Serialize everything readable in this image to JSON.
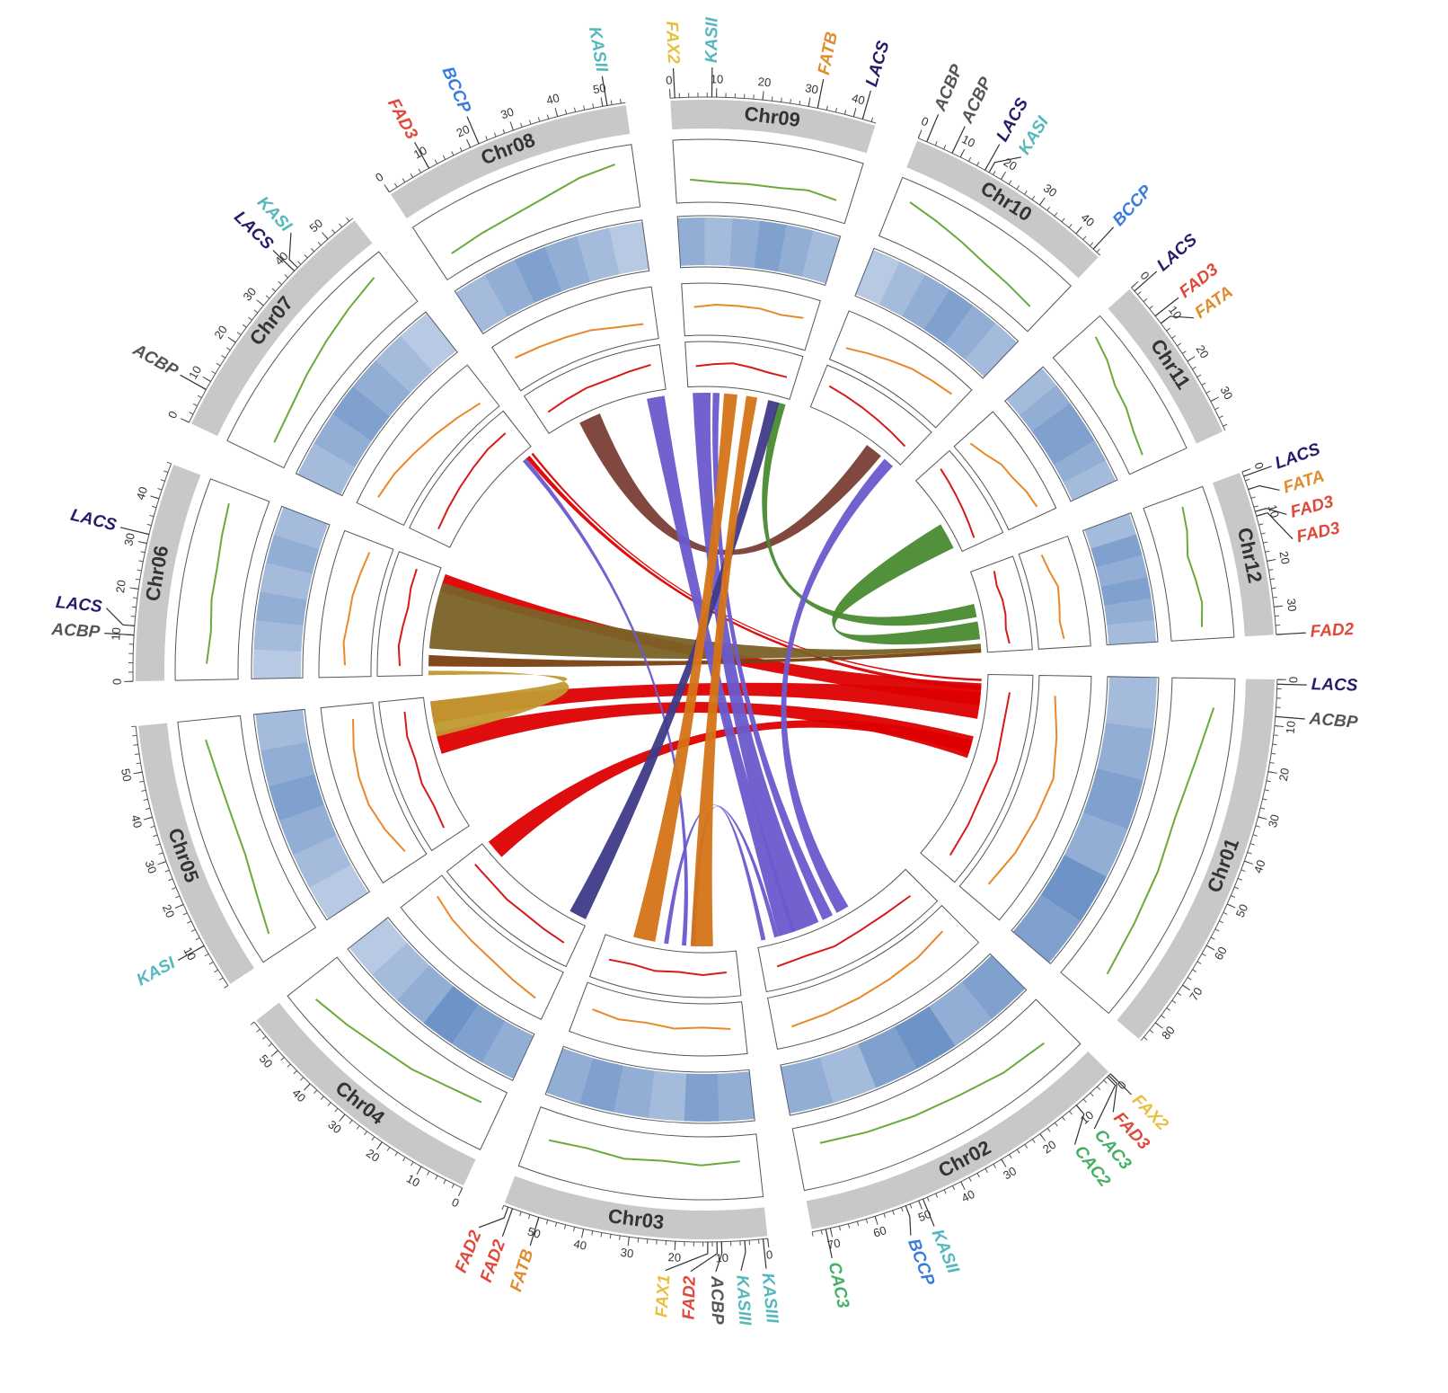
{
  "chart_data": {
    "type": "circos",
    "chromosomes": [
      {
        "name": "Chr01",
        "length": 85,
        "ticks": [
          0,
          10,
          20,
          30,
          40,
          50,
          60,
          70,
          80
        ]
      },
      {
        "name": "Chr02",
        "length": 74,
        "ticks": [
          0,
          10,
          20,
          30,
          40,
          50,
          60,
          70
        ]
      },
      {
        "name": "Chr03",
        "length": 58,
        "ticks": [
          0,
          10,
          20,
          30,
          40,
          50
        ]
      },
      {
        "name": "Chr04",
        "length": 58,
        "ticks": [
          0,
          10,
          20,
          30,
          40,
          50
        ]
      },
      {
        "name": "Chr05",
        "length": 60,
        "ticks": [
          10,
          20,
          30,
          40,
          50
        ]
      },
      {
        "name": "Chr06",
        "length": 48,
        "ticks": [
          0,
          10,
          20,
          30,
          40
        ]
      },
      {
        "name": "Chr07",
        "length": 57,
        "ticks": [
          0,
          10,
          20,
          30,
          40,
          50
        ]
      },
      {
        "name": "Chr08",
        "length": 55,
        "ticks": [
          0,
          10,
          20,
          30,
          40,
          50
        ]
      },
      {
        "name": "Chr09",
        "length": 45,
        "ticks": [
          0,
          10,
          20,
          30,
          40
        ]
      },
      {
        "name": "Chr10",
        "length": 47,
        "ticks": [
          0,
          10,
          20,
          30,
          40
        ]
      },
      {
        "name": "Chr11",
        "length": 37,
        "ticks": [
          0,
          10,
          20,
          30
        ]
      },
      {
        "name": "Chr12",
        "length": 36,
        "ticks": [
          0,
          10,
          20,
          30
        ]
      }
    ],
    "minor_tick_step": 2,
    "gene_colors": {
      "LACS": "#2b1a6b",
      "ACBP": "#555555",
      "KASI": "#55b8bd",
      "KASII": "#55b8bd",
      "KASIII": "#55b8bd",
      "BCCP": "#3b7be0",
      "FAD3": "#e0483a",
      "FAD2": "#e0483a",
      "FATA": "#e08c2c",
      "FATB": "#e08c2c",
      "FAX2": "#e8c040",
      "FAX1": "#e8c040",
      "CAC2": "#45b064",
      "CAC3": "#45b064"
    },
    "genes": [
      {
        "chr": "Chr01",
        "name": "LACS",
        "pos": 1
      },
      {
        "chr": "Chr01",
        "name": "ACBP",
        "pos": 8
      },
      {
        "chr": "Chr02",
        "name": "FAX2",
        "pos": 0
      },
      {
        "chr": "Chr02",
        "name": "FAD3",
        "pos": 0.5
      },
      {
        "chr": "Chr02",
        "name": "CAC3",
        "pos": 1
      },
      {
        "chr": "Chr02",
        "name": "CAC2",
        "pos": 10
      },
      {
        "chr": "Chr02",
        "name": "KASII",
        "pos": 49
      },
      {
        "chr": "Chr02",
        "name": "BCCP",
        "pos": 53
      },
      {
        "chr": "Chr02",
        "name": "CAC3",
        "pos": 71
      },
      {
        "chr": "Chr03",
        "name": "KASIII",
        "pos": 1
      },
      {
        "chr": "Chr03",
        "name": "KASIII",
        "pos": 5
      },
      {
        "chr": "Chr03",
        "name": "ACBP",
        "pos": 10
      },
      {
        "chr": "Chr03",
        "name": "FAD2",
        "pos": 11
      },
      {
        "chr": "Chr03",
        "name": "FAX1",
        "pos": 13
      },
      {
        "chr": "Chr03",
        "name": "FATB",
        "pos": 50
      },
      {
        "chr": "Chr03",
        "name": "FAD2",
        "pos": 56
      },
      {
        "chr": "Chr03",
        "name": "FAD2",
        "pos": 57
      },
      {
        "chr": "Chr05",
        "name": "KASI",
        "pos": 10
      },
      {
        "chr": "Chr06",
        "name": "ACBP",
        "pos": 10
      },
      {
        "chr": "Chr06",
        "name": "LACS",
        "pos": 12
      },
      {
        "chr": "Chr06",
        "name": "LACS",
        "pos": 32
      },
      {
        "chr": "Chr07",
        "name": "ACBP",
        "pos": 8
      },
      {
        "chr": "Chr07",
        "name": "LACS",
        "pos": 40
      },
      {
        "chr": "Chr07",
        "name": "KASI",
        "pos": 41
      },
      {
        "chr": "Chr08",
        "name": "FAD3",
        "pos": 10
      },
      {
        "chr": "Chr08",
        "name": "BCCP",
        "pos": 22
      },
      {
        "chr": "Chr08",
        "name": "KASII",
        "pos": 51
      },
      {
        "chr": "Chr09",
        "name": "FAX2",
        "pos": 1
      },
      {
        "chr": "Chr09",
        "name": "KASII",
        "pos": 9
      },
      {
        "chr": "Chr09",
        "name": "FATB",
        "pos": 32
      },
      {
        "chr": "Chr09",
        "name": "LACS",
        "pos": 42
      },
      {
        "chr": "Chr10",
        "name": "ACBP",
        "pos": 2
      },
      {
        "chr": "Chr10",
        "name": "ACBP",
        "pos": 8
      },
      {
        "chr": "Chr10",
        "name": "LACS",
        "pos": 16
      },
      {
        "chr": "Chr10",
        "name": "KASI",
        "pos": 17
      },
      {
        "chr": "Chr10",
        "name": "BCCP",
        "pos": 45
      },
      {
        "chr": "Chr11",
        "name": "LACS",
        "pos": 1
      },
      {
        "chr": "Chr11",
        "name": "FAD3",
        "pos": 8
      },
      {
        "chr": "Chr11",
        "name": "FATA",
        "pos": 10
      },
      {
        "chr": "Chr12",
        "name": "LACS",
        "pos": 1
      },
      {
        "chr": "Chr12",
        "name": "FATA",
        "pos": 4
      },
      {
        "chr": "Chr12",
        "name": "FAD3",
        "pos": 9
      },
      {
        "chr": "Chr12",
        "name": "FAD3",
        "pos": 10
      },
      {
        "chr": "Chr12",
        "name": "FAD2",
        "pos": 36
      }
    ],
    "tracks": [
      {
        "color": "#6aaa3a",
        "style": "line",
        "ylim": [
          0,
          1
        ],
        "data": [
          [
            0.7,
            0.5,
            0.4,
            0.45,
            0.5,
            0.6
          ],
          [
            0.6,
            0.55,
            0.45,
            0.4,
            0.35,
            0.3
          ],
          [
            0.4,
            0.45,
            0.4,
            0.45,
            0.4,
            0.45
          ],
          [
            0.3,
            0.35,
            0.45,
            0.5,
            0.6,
            0.7
          ],
          [
            0.7,
            0.55,
            0.45,
            0.45,
            0.5,
            0.6
          ],
          [
            0.5,
            0.45,
            0.5,
            0.5,
            0.55,
            0.6
          ],
          [
            0.3,
            0.35,
            0.45,
            0.55,
            0.65,
            0.75
          ],
          [
            0.3,
            0.35,
            0.4,
            0.5,
            0.65,
            0.75
          ],
          [
            0.35,
            0.3,
            0.3,
            0.3,
            0.35,
            0.3
          ],
          [
            0.7,
            0.6,
            0.5,
            0.4,
            0.35,
            0.3
          ],
          [
            0.75,
            0.65,
            0.5,
            0.45,
            0.35,
            0.3
          ],
          [
            0.6,
            0.55,
            0.45,
            0.5,
            0.55,
            0.5
          ]
        ]
      },
      {
        "color": "#4a78b8",
        "style": "heat",
        "ylim": [
          0,
          1
        ],
        "data": [
          [
            0.5,
            0.6,
            0.7,
            0.6,
            0.8,
            0.7
          ],
          [
            0.7,
            0.6,
            0.8,
            0.7,
            0.5,
            0.6
          ],
          [
            0.6,
            0.7,
            0.5,
            0.6,
            0.7,
            0.6
          ],
          [
            0.6,
            0.7,
            0.8,
            0.6,
            0.5,
            0.4
          ],
          [
            0.4,
            0.5,
            0.6,
            0.7,
            0.6,
            0.5
          ],
          [
            0.4,
            0.5,
            0.6,
            0.5,
            0.6,
            0.5
          ],
          [
            0.5,
            0.6,
            0.7,
            0.6,
            0.5,
            0.4
          ],
          [
            0.5,
            0.6,
            0.7,
            0.6,
            0.5,
            0.4
          ],
          [
            0.6,
            0.5,
            0.6,
            0.7,
            0.6,
            0.5
          ],
          [
            0.4,
            0.5,
            0.6,
            0.7,
            0.6,
            0.5
          ],
          [
            0.5,
            0.6,
            0.7,
            0.7,
            0.6,
            0.5
          ],
          [
            0.5,
            0.7,
            0.6,
            0.7,
            0.6,
            0.5
          ]
        ]
      },
      {
        "color": "#e8882a",
        "style": "line",
        "ylim": [
          0,
          1
        ],
        "data": [
          [
            0.3,
            0.45,
            0.6,
            0.55,
            0.5,
            0.4
          ],
          [
            0.35,
            0.45,
            0.5,
            0.55,
            0.6,
            0.65
          ],
          [
            0.5,
            0.45,
            0.5,
            0.45,
            0.5,
            0.45
          ],
          [
            0.7,
            0.6,
            0.5,
            0.45,
            0.4,
            0.3
          ],
          [
            0.3,
            0.45,
            0.55,
            0.55,
            0.5,
            0.4
          ],
          [
            0.5,
            0.55,
            0.5,
            0.5,
            0.45,
            0.4
          ],
          [
            0.7,
            0.65,
            0.55,
            0.45,
            0.35,
            0.25
          ],
          [
            0.6,
            0.55,
            0.5,
            0.45,
            0.35,
            0.3
          ],
          [
            0.55,
            0.6,
            0.6,
            0.6,
            0.55,
            0.6
          ],
          [
            0.3,
            0.4,
            0.5,
            0.6,
            0.65,
            0.7
          ],
          [
            0.25,
            0.35,
            0.5,
            0.55,
            0.65,
            0.7
          ],
          [
            0.4,
            0.45,
            0.55,
            0.5,
            0.45,
            0.5
          ]
        ]
      },
      {
        "color": "#d61a1a",
        "style": "line",
        "ylim": [
          0,
          1
        ],
        "data": [
          [
            0.5,
            0.45,
            0.5,
            0.45,
            0.5,
            0.55
          ],
          [
            0.5,
            0.45,
            0.45,
            0.5,
            0.45,
            0.5
          ],
          [
            0.45,
            0.5,
            0.45,
            0.5,
            0.45,
            0.5
          ],
          [
            0.55,
            0.5,
            0.45,
            0.45,
            0.4,
            0.4
          ],
          [
            0.5,
            0.45,
            0.5,
            0.45,
            0.5,
            0.45
          ],
          [
            0.5,
            0.55,
            0.5,
            0.45,
            0.5,
            0.5
          ],
          [
            0.4,
            0.45,
            0.5,
            0.55,
            0.6,
            0.6
          ],
          [
            0.4,
            0.45,
            0.5,
            0.5,
            0.55,
            0.6
          ],
          [
            0.45,
            0.5,
            0.55,
            0.5,
            0.45,
            0.45
          ],
          [
            0.6,
            0.55,
            0.5,
            0.45,
            0.4,
            0.35
          ],
          [
            0.6,
            0.55,
            0.5,
            0.45,
            0.4,
            0.35
          ],
          [
            0.5,
            0.45,
            0.5,
            0.5,
            0.45,
            0.5
          ]
        ]
      }
    ],
    "links": [
      {
        "chr1": "Chr06",
        "start1": 38,
        "end1": 46,
        "chr2": "Chr01",
        "start2": 4,
        "end2": 14,
        "color": "#dd0000"
      },
      {
        "chr1": "Chr05",
        "start1": 48,
        "end1": 58,
        "chr2": "Chr01",
        "start2": 8,
        "end2": 20,
        "color": "#dd0000"
      },
      {
        "chr1": "Chr05",
        "start1": 34,
        "end1": 44,
        "chr2": "Chr01",
        "start2": 28,
        "end2": 38,
        "color": "#dd0000"
      },
      {
        "chr1": "Chr04",
        "start1": 48,
        "end1": 57,
        "chr2": "Chr01",
        "start2": 30,
        "end2": 36,
        "color": "#dd0000"
      },
      {
        "chr1": "Chr07",
        "start1": 52,
        "end1": 54,
        "chr2": "Chr01",
        "start2": 5,
        "end2": 7,
        "color": "#dd0000"
      },
      {
        "chr1": "Chr07",
        "start1": 55,
        "end1": 56,
        "chr2": "Chr01",
        "start2": 2,
        "end2": 3,
        "color": "#dd0000"
      },
      {
        "chr1": "Chr08",
        "start1": 14,
        "end1": 24,
        "chr2": "Chr10",
        "start2": 30,
        "end2": 38,
        "color": "#7a3e35"
      },
      {
        "chr1": "Chr06",
        "start1": 12,
        "end1": 42,
        "chr2": "Chr12",
        "start2": 32,
        "end2": 34,
        "color": "#7a6226"
      },
      {
        "chr1": "Chr06",
        "start1": 4,
        "end1": 9,
        "chr2": "Chr12",
        "start2": 34,
        "end2": 36,
        "color": "#7a4010"
      },
      {
        "chr1": "Chr05",
        "start1": 42,
        "end1": 58,
        "chr2": "Chr06",
        "start2": 0,
        "end2": 2,
        "color": "#c09a30"
      },
      {
        "chr1": "Chr09",
        "start1": 40,
        "end1": 44,
        "chr2": "Chr12",
        "start2": 14,
        "end2": 20,
        "color": "#4a8a30"
      },
      {
        "chr1": "Chr11",
        "start1": 22,
        "end1": 34,
        "chr2": "Chr12",
        "start2": 22,
        "end2": 30,
        "color": "#4a8a30"
      },
      {
        "chr1": "Chr09",
        "start1": 2,
        "end1": 10,
        "chr2": "Chr02",
        "start2": 45,
        "end2": 58,
        "color": "#6a5acd"
      },
      {
        "chr1": "Chr08",
        "start1": 46,
        "end1": 54,
        "chr2": "Chr02",
        "start2": 56,
        "end2": 64,
        "color": "#6a5acd"
      },
      {
        "chr1": "Chr09",
        "start1": 11,
        "end1": 14,
        "chr2": "Chr02",
        "start2": 38,
        "end2": 43,
        "color": "#6a5acd"
      },
      {
        "chr1": "Chr10",
        "start1": 40,
        "end1": 45,
        "chr2": "Chr02",
        "start2": 30,
        "end2": 36,
        "color": "#6a5acd"
      },
      {
        "chr1": "Chr07",
        "start1": 50,
        "end1": 52,
        "chr2": "Chr03",
        "start2": 22,
        "end2": 24,
        "color": "#6a5acd"
      },
      {
        "chr1": "Chr03",
        "start1": 18,
        "end1": 20,
        "chr2": "Chr02",
        "start2": 70,
        "end2": 72,
        "color": "#6a5acd"
      },
      {
        "chr1": "Chr03",
        "start1": 30,
        "end1": 32,
        "chr2": "Chr02",
        "start2": 64,
        "end2": 66,
        "color": "#6a5acd"
      },
      {
        "chr1": "Chr09",
        "start1": 36,
        "end1": 41,
        "chr2": "Chr04",
        "start2": 1,
        "end2": 9,
        "color": "#3f3a88"
      },
      {
        "chr1": "Chr09",
        "start1": 16,
        "end1": 22,
        "chr2": "Chr03",
        "start2": 36,
        "end2": 46,
        "color": "#d47418"
      },
      {
        "chr1": "Chr09",
        "start1": 26,
        "end1": 31,
        "chr2": "Chr03",
        "start2": 10,
        "end2": 20,
        "color": "#d47418"
      }
    ]
  }
}
